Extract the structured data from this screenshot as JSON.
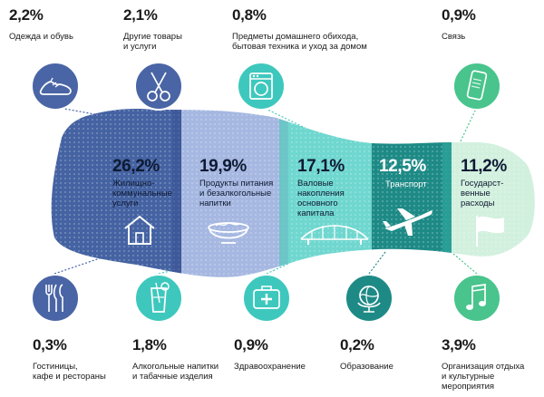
{
  "chart_data": {
    "type": "funnel-infographic",
    "unit": "%",
    "main_segments": [
      {
        "value": "26,2%",
        "label": "Жилищно-\nкоммунальные\nуслуги",
        "icon": "house-icon",
        "color": "#4563a2"
      },
      {
        "value": "19,9%",
        "label": "Продукты питания\nи безалкогольные\nнапитки",
        "icon": "food-bowl-icon",
        "color": "#a6b8e1"
      },
      {
        "value": "17,1%",
        "label": "Валовые\nнакопления\nосновного\nкапитала",
        "icon": "bridge-icon",
        "color": "#6fd7cf"
      },
      {
        "value": "12,5%",
        "label": "Транспорт",
        "icon": "airplane-icon",
        "color": "#1e8a86"
      },
      {
        "value": "11,2%",
        "label": "Государст-\nвенные\nрасходы",
        "icon": "flag-icon",
        "color": "#d2f0de"
      }
    ],
    "minor_items": [
      {
        "value": "2,2%",
        "label": "Одежда и обувь",
        "icon": "sneaker-icon",
        "color": "#4a65a5"
      },
      {
        "value": "2,1%",
        "label": "Другие товары\nи услуги",
        "icon": "scissors-icon",
        "color": "#4a65a5"
      },
      {
        "value": "0,8%",
        "label": "Предметы домашнего обихода,\nбытовая техника и уход за домом",
        "icon": "washing-machine-icon",
        "color": "#3ec8bd"
      },
      {
        "value": "0,9%",
        "label": "Связь",
        "icon": "phone-icon",
        "color": "#48c48c"
      },
      {
        "value": "0,3%",
        "label": "Гостиницы,\nкафе и рестораны",
        "icon": "cutlery-icon",
        "color": "#4a65a5"
      },
      {
        "value": "1,8%",
        "label": "Алкогольные напитки\nи табачные изделия",
        "icon": "cocktail-icon",
        "color": "#3ec8bd"
      },
      {
        "value": "0,9%",
        "label": "Здравоохранение",
        "icon": "first-aid-icon",
        "color": "#3ec8bd"
      },
      {
        "value": "0,2%",
        "label": "Образование",
        "icon": "globe-icon",
        "color": "#1e8a86"
      },
      {
        "value": "3,9%",
        "label": "Организация отдыха\nи культурные\nмероприятия",
        "icon": "music-note-icon",
        "color": "#48c48c"
      }
    ]
  }
}
